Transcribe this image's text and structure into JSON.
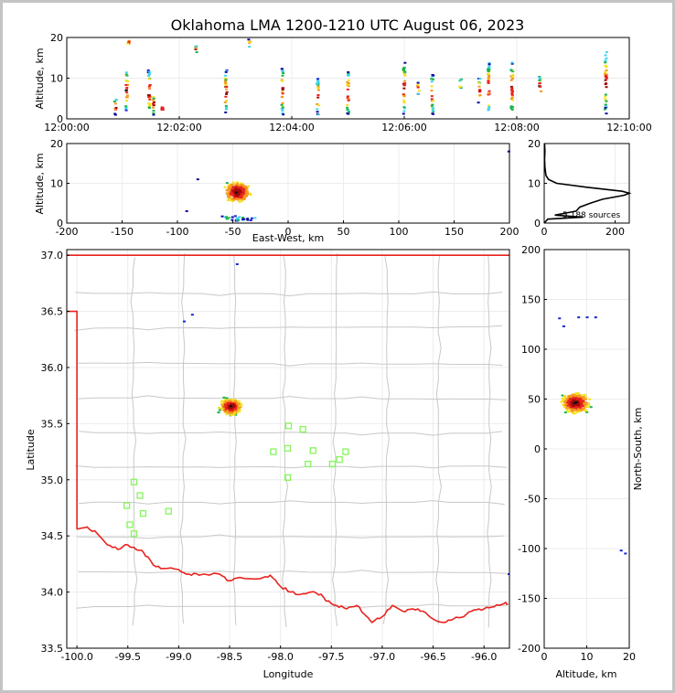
{
  "title": "Oklahoma LMA 1200-1210 UTC August 06, 2023",
  "chart_data": [
    {
      "panel": "altitude-time",
      "type": "scatter",
      "ylabel": "Altitude, km",
      "xlim": [
        "12:00:00",
        "12:10:00"
      ],
      "ylim": [
        0,
        20
      ],
      "xticks": [
        "12:00:00",
        "12:02:00",
        "12:04:00",
        "12:06:00",
        "12:08:00",
        "12:10:00"
      ],
      "yticks": [
        "0",
        "10",
        "20"
      ],
      "flashes": [
        {
          "t": "12:00:52",
          "zmin": 1,
          "zmax": 5
        },
        {
          "t": "12:01:04",
          "zmin": 2,
          "zmax": 12
        },
        {
          "t": "12:01:06",
          "zmin": 18.5,
          "zmax": 19.2
        },
        {
          "t": "12:01:28",
          "zmin": 1,
          "zmax": 12
        },
        {
          "t": "12:01:33",
          "zmin": 1,
          "zmax": 6
        },
        {
          "t": "12:01:42",
          "zmin": 2,
          "zmax": 3
        },
        {
          "t": "12:02:18",
          "zmin": 16,
          "zmax": 18
        },
        {
          "t": "12:02:50",
          "zmin": 1,
          "zmax": 12
        },
        {
          "t": "12:03:15",
          "zmin": 17.5,
          "zmax": 19.5
        },
        {
          "t": "12:03:50",
          "zmin": 1,
          "zmax": 13
        },
        {
          "t": "12:04:28",
          "zmin": 1,
          "zmax": 10
        },
        {
          "t": "12:05:00",
          "zmin": 1,
          "zmax": 12
        },
        {
          "t": "12:06:00",
          "zmin": 1,
          "zmax": 14
        },
        {
          "t": "12:06:15",
          "zmin": 6,
          "zmax": 9
        },
        {
          "t": "12:06:30",
          "zmin": 1,
          "zmax": 11
        },
        {
          "t": "12:07:00",
          "zmin": 7,
          "zmax": 10
        },
        {
          "t": "12:07:20",
          "zmin": 4,
          "zmax": 10
        },
        {
          "t": "12:07:30",
          "zmin": 1,
          "zmax": 14
        },
        {
          "t": "12:07:55",
          "zmin": 1,
          "zmax": 14
        },
        {
          "t": "12:08:25",
          "zmin": 5,
          "zmax": 11
        },
        {
          "t": "12:09:35",
          "zmin": 1,
          "zmax": 17
        }
      ]
    },
    {
      "panel": "altitude-eastwest",
      "type": "heatmap",
      "xlabel": "East-West, km",
      "ylabel": "Altitude, km",
      "xlim": [
        -200,
        200
      ],
      "ylim": [
        0,
        20
      ],
      "xticks": [
        "-200",
        "-150",
        "-100",
        "-50",
        "0",
        "50",
        "100",
        "150",
        "200"
      ],
      "yticks": [
        "0",
        "10",
        "20"
      ],
      "core": {
        "x": -47,
        "z": 8
      },
      "outliers": [
        {
          "x": -92,
          "z": 3
        },
        {
          "x": -82,
          "z": 11
        },
        {
          "x": 199,
          "z": 18
        }
      ]
    },
    {
      "panel": "altitude-histogram",
      "type": "line",
      "xlim": [
        0,
        240
      ],
      "ylim": [
        0,
        20
      ],
      "xticks": [
        "0",
        "200"
      ],
      "yticks": [
        "0",
        "10",
        "20"
      ],
      "annotation": "5,188 sources",
      "counts": [
        {
          "z": 0,
          "n": 0
        },
        {
          "z": 1,
          "n": 10
        },
        {
          "z": 1.5,
          "n": 110
        },
        {
          "z": 2,
          "n": 30
        },
        {
          "z": 2.5,
          "n": 60
        },
        {
          "z": 3,
          "n": 90
        },
        {
          "z": 4,
          "n": 100
        },
        {
          "z": 5,
          "n": 130
        },
        {
          "z": 6,
          "n": 165
        },
        {
          "z": 7,
          "n": 225
        },
        {
          "z": 7.5,
          "n": 240
        },
        {
          "z": 8,
          "n": 220
        },
        {
          "z": 9,
          "n": 120
        },
        {
          "z": 10,
          "n": 35
        },
        {
          "z": 11,
          "n": 12
        },
        {
          "z": 12,
          "n": 5
        },
        {
          "z": 14,
          "n": 2
        },
        {
          "z": 16,
          "n": 1
        },
        {
          "z": 18,
          "n": 2
        },
        {
          "z": 20,
          "n": 1
        }
      ]
    },
    {
      "panel": "plan-view",
      "type": "scatter",
      "xlabel": "Longitude",
      "ylabel": "Latitude",
      "xlim": [
        -100.1,
        -95.75
      ],
      "ylim": [
        33.5,
        37.05
      ],
      "xticks": [
        "-100.0",
        "-99.5",
        "-99.0",
        "-98.5",
        "-98.0",
        "-97.5",
        "-97.0",
        "-96.5",
        "-96.0"
      ],
      "yticks": [
        "33.5",
        "34.0",
        "34.5",
        "35.0",
        "35.5",
        "36.0",
        "36.5",
        "37.0"
      ],
      "core": {
        "lon": -98.5,
        "lat": 35.66
      },
      "stray_sources": [
        {
          "lon": -98.43,
          "lat": 36.92
        },
        {
          "lon": -98.87,
          "lat": 36.47
        },
        {
          "lon": -98.95,
          "lat": 36.41
        },
        {
          "lon": -95.76,
          "lat": 34.16
        }
      ],
      "stations": [
        {
          "lon": -97.92,
          "lat": 35.48
        },
        {
          "lon": -97.78,
          "lat": 35.45
        },
        {
          "lon": -97.93,
          "lat": 35.28
        },
        {
          "lon": -98.07,
          "lat": 35.25
        },
        {
          "lon": -97.68,
          "lat": 35.26
        },
        {
          "lon": -97.36,
          "lat": 35.25
        },
        {
          "lon": -97.42,
          "lat": 35.18
        },
        {
          "lon": -97.49,
          "lat": 35.14
        },
        {
          "lon": -97.73,
          "lat": 35.14
        },
        {
          "lon": -97.93,
          "lat": 35.02
        },
        {
          "lon": -99.44,
          "lat": 34.98
        },
        {
          "lon": -99.38,
          "lat": 34.86
        },
        {
          "lon": -99.51,
          "lat": 34.77
        },
        {
          "lon": -99.35,
          "lat": 34.7
        },
        {
          "lon": -99.1,
          "lat": 34.72
        },
        {
          "lon": -99.48,
          "lat": 34.6
        },
        {
          "lon": -99.44,
          "lat": 34.52
        }
      ],
      "colors": {
        "state_border": "#e8231e",
        "counties": "#c8c8c8",
        "stations": "#86f55c"
      }
    },
    {
      "panel": "northsouth-altitude",
      "type": "heatmap",
      "xlabel": "Altitude, km",
      "ylabel": "North-South, km",
      "xlim": [
        0,
        20
      ],
      "ylim": [
        -200,
        200
      ],
      "xticks": [
        "0",
        "10",
        "20"
      ],
      "yticks": [
        "200",
        "150",
        "100",
        "50",
        "0",
        "-50",
        "-100",
        "-150",
        "-200"
      ],
      "core": {
        "z": 7,
        "y": 47
      },
      "outliers": [
        {
          "z": 3.5,
          "y": 131
        },
        {
          "z": 4.5,
          "y": 123
        },
        {
          "z": 8,
          "y": 132
        },
        {
          "z": 10,
          "y": 132
        },
        {
          "z": 12,
          "y": 132
        },
        {
          "z": 18,
          "y": -102
        },
        {
          "z": 19,
          "y": -105
        }
      ]
    }
  ]
}
